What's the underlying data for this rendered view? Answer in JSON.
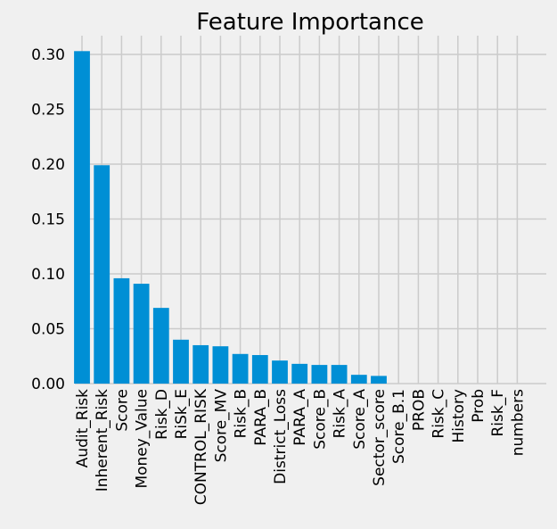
{
  "chart_data": {
    "type": "bar",
    "title": "Feature Importance",
    "xlabel": "",
    "ylabel": "",
    "categories": [
      "Audit_Risk",
      "Inherent_Risk",
      "Score",
      "Money_Value",
      "Risk_D",
      "RiSk_E",
      "CONTROL_RISK",
      "Score_MV",
      "Risk_B",
      "PARA_B",
      "District_Loss",
      "PARA_A",
      "Score_B",
      "Risk_A",
      "Score_A",
      "Sector_score",
      "Score_B.1",
      "PROB",
      "Risk_C",
      "History",
      "Prob",
      "Risk_F",
      "numbers"
    ],
    "values": [
      0.303,
      0.199,
      0.096,
      0.091,
      0.069,
      0.04,
      0.035,
      0.034,
      0.027,
      0.026,
      0.021,
      0.018,
      0.017,
      0.017,
      0.008,
      0.007,
      0,
      0,
      0,
      0,
      0,
      0,
      0
    ],
    "ylim": [
      0,
      0.32
    ],
    "yticks": [
      0.0,
      0.05,
      0.1,
      0.15,
      0.2,
      0.25,
      0.3
    ],
    "ytick_labels": [
      "0.00",
      "0.05",
      "0.10",
      "0.15",
      "0.20",
      "0.25",
      "0.30"
    ],
    "grid": true,
    "bar_color": "#008fd5",
    "grid_color": "#cbcbcb",
    "background_color": "#f0f0f0"
  }
}
